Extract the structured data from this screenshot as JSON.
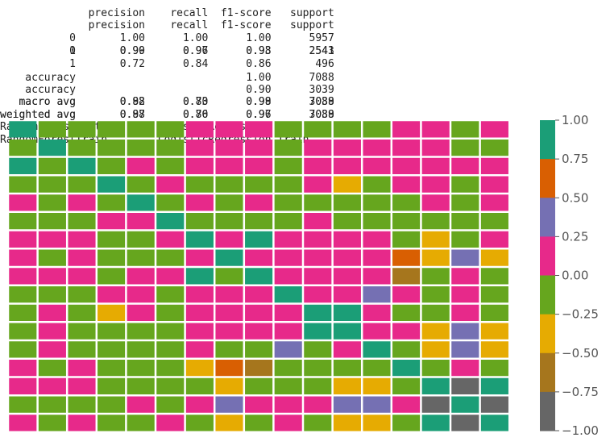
{
  "report": {
    "lines": [
      "              precision    recall  f1-score   support",
      "              precision    recall  f1-score   support",
      "           0       1.00      1.00      1.00      5957",
      "           0       0.99      0.97      0.98      2543",
      "           1       0.90      0.96      0.93      2541",
      "           1       0.72      0.84      0.86       496",
      "    accuracy                           1.00      7088",
      "    accuracy                           0.90      3039",
      "   macro avg       0.82      0.73      0.98      7088",
      "   macro avg       0.98      0.80      0.99      3039",
      "weighted avg       0.88      0.86      0.96      7088",
      "weighted avg       0.97      0.70      0.97      3039",
      "RandomForestTest         LogisticRegression Test",
      "RandomForestTrain        LogisticRegression Train"
    ]
  },
  "chart_data": {
    "type": "heatmap",
    "rows": 17,
    "cols": 17,
    "palette": [
      "#666666",
      "#a6761d",
      "#e6ab02",
      "#66a61e",
      "#e7298a",
      "#7570b3",
      "#d95f02",
      "#1b9e77"
    ],
    "palette_names": [
      "gray",
      "brown",
      "yellow",
      "green",
      "magenta",
      "purple",
      "orange",
      "teal"
    ],
    "cells": [
      [
        7,
        3,
        3,
        3,
        3,
        3,
        4,
        4,
        4,
        3,
        3,
        3,
        3,
        4,
        4,
        3,
        4
      ],
      [
        3,
        7,
        3,
        3,
        3,
        3,
        4,
        4,
        4,
        3,
        4,
        4,
        4,
        4,
        4,
        3,
        3
      ],
      [
        7,
        3,
        7,
        3,
        4,
        3,
        4,
        4,
        4,
        3,
        4,
        4,
        4,
        4,
        4,
        4,
        4
      ],
      [
        3,
        3,
        3,
        7,
        3,
        4,
        3,
        3,
        3,
        3,
        4,
        2,
        3,
        4,
        4,
        3,
        4
      ],
      [
        4,
        3,
        4,
        3,
        7,
        3,
        4,
        3,
        4,
        3,
        3,
        3,
        3,
        3,
        4,
        3,
        4
      ],
      [
        3,
        3,
        3,
        4,
        4,
        7,
        3,
        3,
        3,
        3,
        4,
        3,
        3,
        3,
        3,
        3,
        3
      ],
      [
        4,
        4,
        4,
        3,
        3,
        4,
        7,
        4,
        7,
        4,
        4,
        4,
        4,
        3,
        2,
        3,
        4
      ],
      [
        4,
        3,
        4,
        3,
        3,
        3,
        4,
        7,
        4,
        4,
        4,
        4,
        4,
        6,
        2,
        5,
        2
      ],
      [
        4,
        4,
        4,
        3,
        4,
        4,
        7,
        3,
        7,
        4,
        4,
        4,
        4,
        1,
        3,
        4,
        3
      ],
      [
        3,
        3,
        3,
        4,
        4,
        3,
        4,
        4,
        4,
        7,
        4,
        4,
        5,
        4,
        3,
        4,
        3
      ],
      [
        3,
        4,
        3,
        2,
        4,
        3,
        4,
        4,
        4,
        4,
        7,
        7,
        4,
        3,
        3,
        4,
        3
      ],
      [
        3,
        4,
        3,
        3,
        3,
        3,
        4,
        4,
        4,
        4,
        7,
        7,
        4,
        4,
        2,
        5,
        2
      ],
      [
        3,
        4,
        3,
        3,
        3,
        3,
        4,
        3,
        3,
        5,
        3,
        4,
        7,
        3,
        2,
        5,
        2
      ],
      [
        4,
        3,
        4,
        3,
        3,
        3,
        2,
        6,
        1,
        3,
        3,
        3,
        3,
        7,
        3,
        4,
        3
      ],
      [
        4,
        4,
        4,
        3,
        3,
        3,
        3,
        2,
        3,
        3,
        3,
        2,
        2,
        3,
        7,
        0,
        7
      ],
      [
        3,
        3,
        3,
        3,
        4,
        3,
        4,
        5,
        4,
        4,
        4,
        5,
        5,
        4,
        0,
        7,
        0
      ],
      [
        4,
        3,
        4,
        3,
        3,
        4,
        3,
        2,
        3,
        4,
        3,
        2,
        2,
        3,
        7,
        0,
        7
      ]
    ],
    "colorbar": {
      "min": -1.0,
      "max": 1.0,
      "ticks": [
        1.0,
        0.75,
        0.5,
        0.25,
        0.0,
        -0.25,
        -0.5,
        -0.75,
        -1.0
      ],
      "tick_labels": [
        "1.00",
        "0.75",
        "0.50",
        "0.25",
        "0.00",
        "−0.25",
        "−0.50",
        "−0.75",
        "−1.00"
      ]
    }
  }
}
